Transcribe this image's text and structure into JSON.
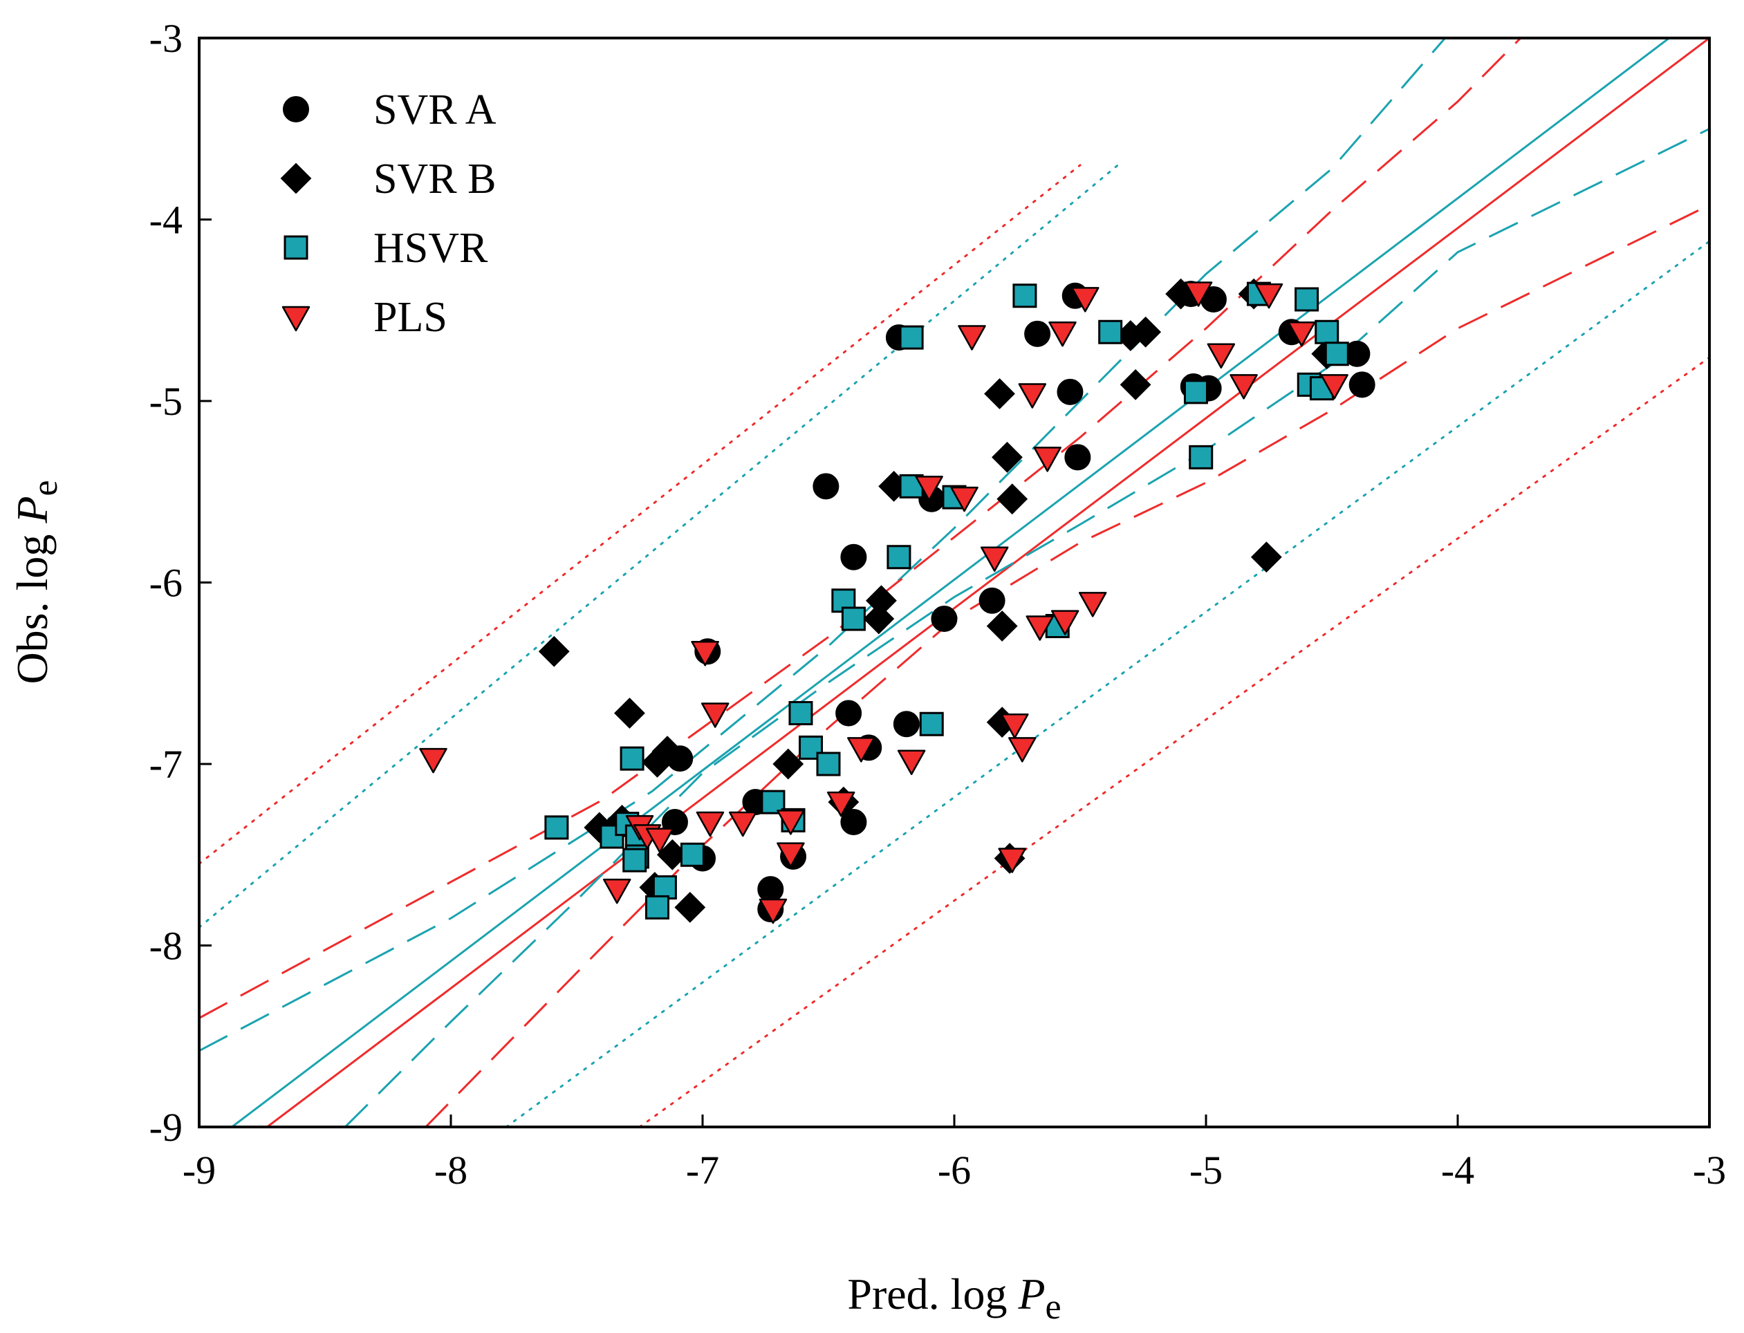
{
  "chart_data": {
    "type": "scatter",
    "title": "",
    "xlabel": {
      "main": "Pred. log ",
      "italic": "P",
      "sub": "e"
    },
    "ylabel": {
      "main": "Obs. log ",
      "italic": "P",
      "sub": "e"
    },
    "xlim": [
      -9,
      -3
    ],
    "ylim": [
      -9,
      -3
    ],
    "xticks": [
      -9,
      -8,
      -7,
      -6,
      -5,
      -4,
      -3
    ],
    "yticks": [
      -9,
      -8,
      -7,
      -6,
      -5,
      -4,
      -3
    ],
    "xtick_labels": [
      "-9",
      "-8",
      "-7",
      "-6",
      "-5",
      "-4",
      "-3"
    ],
    "ytick_labels": [
      "-9",
      "-8",
      "-7",
      "-6",
      "-5",
      "-4",
      "-3"
    ],
    "grid": false,
    "legend_position": "top-left",
    "colors": {
      "hsvr": "#1ba3b0",
      "pls": "#ef2b2b",
      "dark": "#000000"
    },
    "series": [
      {
        "name": "SVR A",
        "marker": "circle",
        "points": [
          [
            -6.22,
            -4.65
          ],
          [
            -5.52,
            -4.42
          ],
          [
            -5.67,
            -4.63
          ],
          [
            -5.54,
            -4.95
          ],
          [
            -5.51,
            -5.31
          ],
          [
            -5.06,
            -4.41
          ],
          [
            -4.97,
            -4.44
          ],
          [
            -5.05,
            -4.92
          ],
          [
            -4.99,
            -4.93
          ],
          [
            -4.66,
            -4.62
          ],
          [
            -4.4,
            -4.74
          ],
          [
            -4.38,
            -4.91
          ],
          [
            -6.51,
            -5.47
          ],
          [
            -6.09,
            -5.54
          ],
          [
            -6.4,
            -5.86
          ],
          [
            -6.04,
            -6.2
          ],
          [
            -5.85,
            -6.1
          ],
          [
            -6.98,
            -6.38
          ],
          [
            -6.42,
            -6.72
          ],
          [
            -6.19,
            -6.78
          ],
          [
            -6.34,
            -6.91
          ],
          [
            -7.09,
            -6.97
          ],
          [
            -7.31,
            -7.33
          ],
          [
            -7.11,
            -7.32
          ],
          [
            -7.0,
            -7.52
          ],
          [
            -6.79,
            -7.21
          ],
          [
            -6.73,
            -7.69
          ],
          [
            -6.73,
            -7.8
          ],
          [
            -6.64,
            -7.51
          ],
          [
            -6.4,
            -7.32
          ]
        ]
      },
      {
        "name": "SVR B",
        "marker": "diamond",
        "points": [
          [
            -5.1,
            -4.41
          ],
          [
            -4.81,
            -4.41
          ],
          [
            -5.24,
            -4.62
          ],
          [
            -5.3,
            -4.64
          ],
          [
            -5.28,
            -4.91
          ],
          [
            -5.82,
            -4.96
          ],
          [
            -5.79,
            -5.31
          ],
          [
            -6.24,
            -5.47
          ],
          [
            -5.77,
            -5.54
          ],
          [
            -4.76,
            -5.86
          ],
          [
            -6.29,
            -6.1
          ],
          [
            -6.3,
            -6.2
          ],
          [
            -5.81,
            -6.24
          ],
          [
            -7.59,
            -6.38
          ],
          [
            -7.29,
            -6.72
          ],
          [
            -5.81,
            -6.77
          ],
          [
            -7.14,
            -6.93
          ],
          [
            -7.18,
            -6.99
          ],
          [
            -6.66,
            -7.0
          ],
          [
            -7.41,
            -7.35
          ],
          [
            -7.32,
            -7.31
          ],
          [
            -7.12,
            -7.5
          ],
          [
            -6.44,
            -7.21
          ],
          [
            -7.19,
            -7.68
          ],
          [
            -7.05,
            -7.79
          ],
          [
            -5.78,
            -7.52
          ],
          [
            -4.52,
            -4.74
          ]
        ]
      },
      {
        "name": "HSVR",
        "marker": "square",
        "points": [
          [
            -6.17,
            -4.65
          ],
          [
            -5.72,
            -4.42
          ],
          [
            -5.38,
            -4.62
          ],
          [
            -4.79,
            -4.41
          ],
          [
            -4.6,
            -4.44
          ],
          [
            -4.52,
            -4.62
          ],
          [
            -4.48,
            -4.74
          ],
          [
            -5.04,
            -4.95
          ],
          [
            -4.59,
            -4.91
          ],
          [
            -4.54,
            -4.93
          ],
          [
            -5.02,
            -5.31
          ],
          [
            -6.17,
            -5.47
          ],
          [
            -6.0,
            -5.53
          ],
          [
            -6.22,
            -5.86
          ],
          [
            -6.44,
            -6.1
          ],
          [
            -6.4,
            -6.2
          ],
          [
            -5.59,
            -6.24
          ],
          [
            -6.61,
            -6.72
          ],
          [
            -6.09,
            -6.78
          ],
          [
            -6.57,
            -6.91
          ],
          [
            -6.5,
            -7.0
          ],
          [
            -7.28,
            -6.97
          ],
          [
            -7.58,
            -7.35
          ],
          [
            -7.36,
            -7.4
          ],
          [
            -7.3,
            -7.33
          ],
          [
            -7.26,
            -7.4
          ],
          [
            -7.26,
            -7.51
          ],
          [
            -7.27,
            -7.53
          ],
          [
            -7.04,
            -7.5
          ],
          [
            -6.72,
            -7.21
          ],
          [
            -6.64,
            -7.31
          ],
          [
            -7.15,
            -7.68
          ],
          [
            -7.18,
            -7.79
          ]
        ]
      },
      {
        "name": "PLS",
        "marker": "triangle-down",
        "points": [
          [
            -5.03,
            -4.4
          ],
          [
            -4.75,
            -4.41
          ],
          [
            -5.48,
            -4.43
          ],
          [
            -4.62,
            -4.62
          ],
          [
            -4.94,
            -4.74
          ],
          [
            -5.57,
            -4.62
          ],
          [
            -5.93,
            -4.64
          ],
          [
            -4.49,
            -4.91
          ],
          [
            -4.85,
            -4.91
          ],
          [
            -5.69,
            -4.96
          ],
          [
            -5.63,
            -5.31
          ],
          [
            -6.1,
            -5.47
          ],
          [
            -5.96,
            -5.53
          ],
          [
            -5.84,
            -5.86
          ],
          [
            -5.45,
            -6.11
          ],
          [
            -5.56,
            -6.21
          ],
          [
            -5.66,
            -6.24
          ],
          [
            -6.95,
            -6.72
          ],
          [
            -6.99,
            -6.38
          ],
          [
            -5.76,
            -6.78
          ],
          [
            -5.73,
            -6.91
          ],
          [
            -6.37,
            -6.91
          ],
          [
            -6.17,
            -6.98
          ],
          [
            -8.07,
            -6.97
          ],
          [
            -7.25,
            -7.34
          ],
          [
            -7.22,
            -7.39
          ],
          [
            -7.17,
            -7.41
          ],
          [
            -6.97,
            -7.32
          ],
          [
            -6.84,
            -7.32
          ],
          [
            -6.65,
            -7.31
          ],
          [
            -6.45,
            -7.21
          ],
          [
            -6.65,
            -7.49
          ],
          [
            -7.34,
            -7.69
          ],
          [
            -6.72,
            -7.8
          ],
          [
            -5.77,
            -7.52
          ]
        ]
      }
    ],
    "fit_lines": [
      {
        "color": "hsvr",
        "style": "solid",
        "points": [
          [
            -8.87,
            -9.0
          ],
          [
            -3.16,
            -3.0
          ]
        ]
      },
      {
        "color": "pls",
        "style": "solid",
        "points": [
          [
            -8.73,
            -9.0
          ],
          [
            -3.0,
            -3.0
          ]
        ]
      },
      {
        "color": "hsvr",
        "style": "dotted",
        "points": [
          [
            -9.0,
            -7.9
          ],
          [
            -5.35,
            -3.7
          ]
        ]
      },
      {
        "color": "hsvr",
        "style": "dotted",
        "points": [
          [
            -7.78,
            -9.0
          ],
          [
            -3.0,
            -4.12
          ]
        ]
      },
      {
        "color": "pls",
        "style": "dotted",
        "points": [
          [
            -9.0,
            -7.55
          ],
          [
            -5.5,
            -3.7
          ]
        ]
      },
      {
        "color": "pls",
        "style": "dotted",
        "points": [
          [
            -7.25,
            -9.0
          ],
          [
            -3.0,
            -4.76
          ]
        ]
      },
      {
        "color": "hsvr",
        "style": "dashed",
        "points": [
          [
            -9.0,
            -8.58
          ],
          [
            -8.0,
            -7.85
          ],
          [
            -7.2,
            -7.15
          ],
          [
            -6.5,
            -6.35
          ],
          [
            -6.0,
            -5.7
          ],
          [
            -5.5,
            -5.0
          ],
          [
            -5.0,
            -4.3
          ],
          [
            -4.5,
            -3.72
          ],
          [
            -4.05,
            -3.0
          ]
        ]
      },
      {
        "color": "hsvr",
        "style": "dashed",
        "points": [
          [
            -8.42,
            -9.0
          ],
          [
            -8.0,
            -8.42
          ],
          [
            -7.5,
            -7.75
          ],
          [
            -7.0,
            -7.05
          ],
          [
            -6.5,
            -6.55
          ],
          [
            -6.0,
            -6.08
          ],
          [
            -5.5,
            -5.68
          ],
          [
            -5.0,
            -5.27
          ],
          [
            -4.5,
            -4.8
          ],
          [
            -4.0,
            -4.18
          ],
          [
            -3.0,
            -3.5
          ]
        ]
      },
      {
        "color": "pls",
        "style": "dashed",
        "points": [
          [
            -9.0,
            -8.4
          ],
          [
            -8.0,
            -7.65
          ],
          [
            -7.4,
            -7.2
          ],
          [
            -7.0,
            -6.8
          ],
          [
            -6.5,
            -6.3
          ],
          [
            -6.0,
            -5.75
          ],
          [
            -5.5,
            -5.2
          ],
          [
            -5.0,
            -4.6
          ],
          [
            -4.5,
            -3.95
          ],
          [
            -4.0,
            -3.35
          ],
          [
            -3.75,
            -3.0
          ]
        ]
      },
      {
        "color": "pls",
        "style": "dashed",
        "points": [
          [
            -8.1,
            -9.0
          ],
          [
            -7.5,
            -8.15
          ],
          [
            -7.0,
            -7.45
          ],
          [
            -6.5,
            -6.8
          ],
          [
            -6.0,
            -6.2
          ],
          [
            -5.5,
            -5.78
          ],
          [
            -5.0,
            -5.45
          ],
          [
            -4.5,
            -5.05
          ],
          [
            -4.0,
            -4.6
          ],
          [
            -3.0,
            -3.92
          ]
        ]
      }
    ]
  }
}
